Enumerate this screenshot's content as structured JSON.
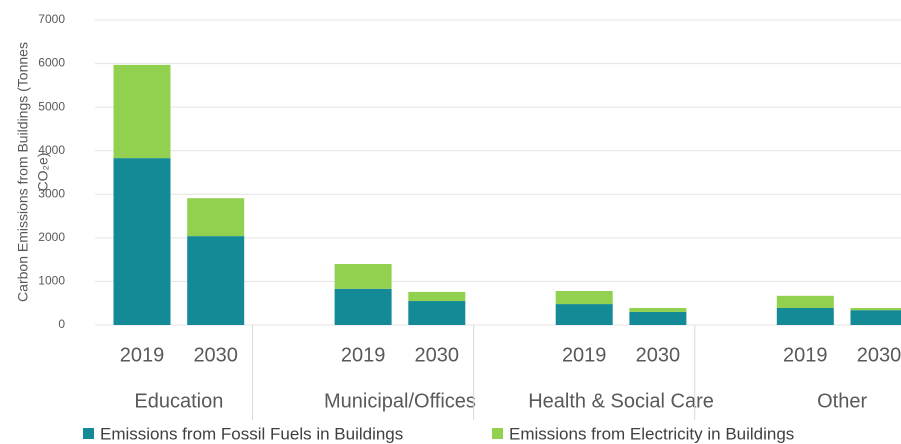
{
  "chart_data": {
    "type": "bar",
    "stacked": true,
    "y_label": [
      "Carbon Emissions from Buildings (Tonnes",
      "CO₂e)"
    ],
    "categories": [
      "2019",
      "2030",
      "2019",
      "2030",
      "2019",
      "2030",
      "2019",
      "2030"
    ],
    "groups": [
      "Education",
      "Municipal/Offices",
      "Health & Social Care",
      "Other"
    ],
    "series": [
      {
        "name": "Emissions from Fossil Fuels in Buildings",
        "color": "#138a96",
        "values": [
          3830,
          2040,
          830,
          550,
          480,
          300,
          390,
          340
        ]
      },
      {
        "name": "Emissions from Electricity in Buildings",
        "color": "#92d050",
        "values": [
          2140,
          870,
          570,
          210,
          300,
          90,
          280,
          50
        ]
      }
    ],
    "ylim": [
      0,
      7000
    ],
    "yticks": [
      0,
      1000,
      2000,
      3000,
      4000,
      5000,
      6000,
      7000
    ],
    "grid": true,
    "legend": "bottom"
  }
}
